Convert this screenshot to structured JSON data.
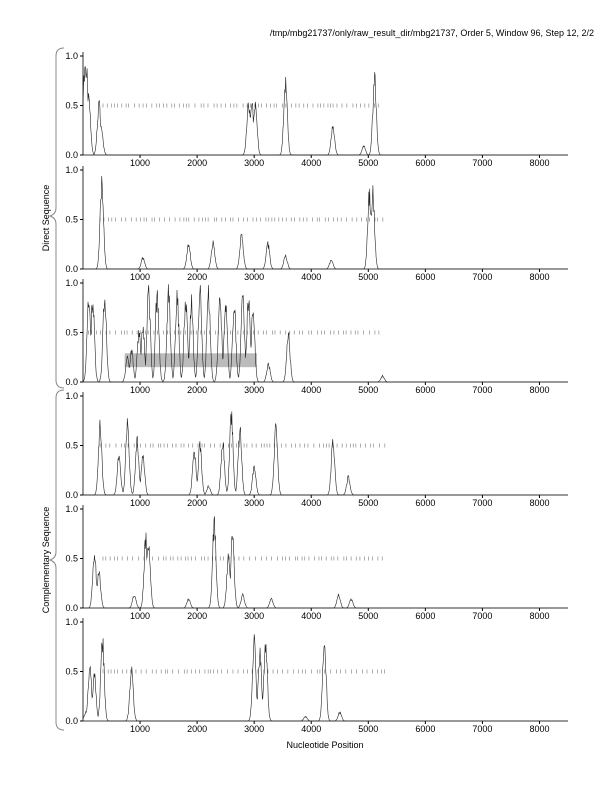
{
  "chart_data": {
    "type": "line",
    "title": "/tmp/mbg21737/only/raw_result_dir/mbg21737, Order 5, Window 96, Step 12, 2/2",
    "xlabel": "Nucleotide Position",
    "group_labels": [
      "Direct Sequence",
      "Complementary Sequence"
    ],
    "xlim": [
      0,
      8500
    ],
    "ylim": [
      0,
      1
    ],
    "xticks": [
      1000,
      2000,
      3000,
      4000,
      5000,
      6000,
      7000,
      8000
    ],
    "yticks": [
      "0.0",
      "0.5",
      "1.0"
    ],
    "panels": [
      {
        "name": "direct-frame-1",
        "peaks": [
          [
            30,
            1.0
          ],
          [
            60,
            0.95
          ],
          [
            100,
            0.7
          ],
          [
            280,
            0.58
          ],
          [
            320,
            0.3
          ],
          [
            2900,
            0.6
          ],
          [
            2960,
            0.55
          ],
          [
            3020,
            0.6
          ],
          [
            3550,
            0.85
          ],
          [
            4380,
            0.33
          ],
          [
            4920,
            0.1
          ],
          [
            5110,
            0.9
          ]
        ],
        "marks": [
          350,
          5250
        ]
      },
      {
        "name": "direct-frame-2",
        "peaks": [
          [
            330,
            0.95
          ],
          [
            1050,
            0.13
          ],
          [
            1850,
            0.27
          ],
          [
            2280,
            0.3
          ],
          [
            2780,
            0.38
          ],
          [
            3240,
            0.28
          ],
          [
            3550,
            0.15
          ],
          [
            4350,
            0.1
          ],
          [
            5020,
            0.85
          ],
          [
            5080,
            0.86
          ]
        ],
        "marks": [
          300,
          5300
        ]
      },
      {
        "name": "direct-frame-3",
        "peaks": [
          [
            100,
            0.92
          ],
          [
            170,
            0.93
          ],
          [
            380,
            0.97
          ],
          [
            780,
            0.3
          ],
          [
            850,
            0.35
          ],
          [
            980,
            0.55
          ],
          [
            1050,
            0.6
          ],
          [
            1150,
            1.0
          ],
          [
            1300,
            1.0
          ],
          [
            1500,
            1.0
          ],
          [
            1650,
            0.97
          ],
          [
            1800,
            0.95
          ],
          [
            1900,
            0.9
          ],
          [
            2050,
            1.0
          ],
          [
            2200,
            1.0
          ],
          [
            2400,
            0.95
          ],
          [
            2500,
            0.9
          ],
          [
            2650,
            0.9
          ],
          [
            2800,
            0.98
          ],
          [
            2900,
            0.95
          ],
          [
            2980,
            0.8
          ],
          [
            3250,
            0.2
          ],
          [
            3600,
            0.52
          ],
          [
            5250,
            0.07
          ]
        ],
        "marks": [
          100,
          5200
        ],
        "region": {
          "x": [
            730,
            3050
          ],
          "y": [
            0.15,
            0.29
          ]
        }
      },
      {
        "name": "complementary-frame-1",
        "peaks": [
          [
            300,
            0.8
          ],
          [
            630,
            0.45
          ],
          [
            780,
            0.8
          ],
          [
            950,
            0.6
          ],
          [
            1050,
            0.45
          ],
          [
            1950,
            0.5
          ],
          [
            2050,
            0.55
          ],
          [
            2200,
            0.1
          ],
          [
            2450,
            0.6
          ],
          [
            2600,
            0.88
          ],
          [
            2750,
            0.75
          ],
          [
            3000,
            0.3
          ],
          [
            3380,
            0.75
          ],
          [
            4380,
            0.6
          ],
          [
            4650,
            0.2
          ]
        ],
        "marks": [
          300,
          5300
        ]
      },
      {
        "name": "complementary-frame-2",
        "peaks": [
          [
            200,
            0.62
          ],
          [
            280,
            0.4
          ],
          [
            900,
            0.15
          ],
          [
            1100,
            0.78
          ],
          [
            1150,
            0.75
          ],
          [
            1850,
            0.1
          ],
          [
            2300,
            0.95
          ],
          [
            2550,
            0.58
          ],
          [
            2620,
            0.78
          ],
          [
            2800,
            0.15
          ],
          [
            3300,
            0.1
          ],
          [
            4480,
            0.15
          ],
          [
            4700,
            0.1
          ]
        ],
        "marks": [
          350,
          5300
        ]
      },
      {
        "name": "complementary-frame-3",
        "peaks": [
          [
            50,
            0.1
          ],
          [
            120,
            0.62
          ],
          [
            200,
            0.5
          ],
          [
            340,
            0.92
          ],
          [
            850,
            0.6
          ],
          [
            3000,
            0.88
          ],
          [
            3100,
            0.75
          ],
          [
            3200,
            0.88
          ],
          [
            3900,
            0.05
          ],
          [
            4230,
            0.93
          ],
          [
            4500,
            0.1
          ]
        ],
        "marks": [
          350,
          5350
        ]
      }
    ]
  }
}
